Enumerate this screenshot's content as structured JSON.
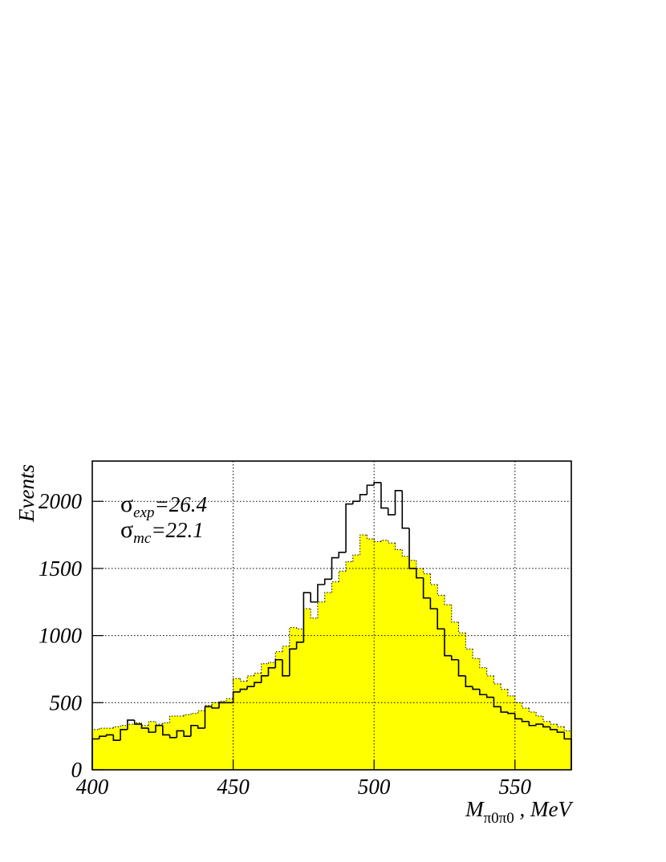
{
  "chart_data": {
    "type": "histogram",
    "bins": [
      400,
      402.5,
      405,
      407.5,
      410,
      412.5,
      415,
      417.5,
      420,
      422.5,
      425,
      427.5,
      430,
      432.5,
      435,
      437.5,
      440,
      442.5,
      445,
      447.5,
      450,
      452.5,
      455,
      457.5,
      460,
      462.5,
      465,
      467.5,
      470,
      472.5,
      475,
      477.5,
      480,
      482.5,
      485,
      487.5,
      490,
      492.5,
      495,
      497.5,
      500,
      502.5,
      505,
      507.5,
      510,
      512.5,
      515,
      517.5,
      520,
      522.5,
      525,
      527.5,
      530,
      532.5,
      535,
      537.5,
      540,
      542.5,
      545,
      547.5,
      550,
      552.5,
      555,
      557.5,
      560,
      562.5,
      565,
      567.5,
      570
    ],
    "series": [
      {
        "color": "#ffff00",
        "style": "filled",
        "values": [
          300,
          310,
          310,
          320,
          330,
          340,
          350,
          330,
          360,
          340,
          350,
          400,
          400,
          410,
          420,
          440,
          480,
          500,
          510,
          530,
          680,
          660,
          700,
          720,
          790,
          800,
          880,
          920,
          1060,
          1050,
          1200,
          1130,
          1250,
          1320,
          1400,
          1480,
          1550,
          1600,
          1750,
          1720,
          1700,
          1710,
          1690,
          1640,
          1590,
          1560,
          1500,
          1460,
          1380,
          1300,
          1230,
          1100,
          1020,
          900,
          830,
          760,
          700,
          640,
          600,
          550,
          500,
          460,
          430,
          400,
          360,
          340,
          320,
          290
        ]
      },
      {
        "color": "#000000",
        "style": "step",
        "values": [
          230,
          250,
          260,
          220,
          300,
          370,
          340,
          310,
          280,
          330,
          260,
          240,
          290,
          250,
          330,
          310,
          470,
          460,
          500,
          500,
          580,
          600,
          620,
          650,
          700,
          760,
          820,
          700,
          900,
          950,
          1320,
          1250,
          1380,
          1420,
          1580,
          1620,
          1980,
          2000,
          2050,
          2120,
          2140,
          1950,
          1900,
          2080,
          1800,
          1500,
          1430,
          1280,
          1200,
          1050,
          850,
          820,
          700,
          620,
          600,
          560,
          540,
          470,
          430,
          420,
          380,
          360,
          330,
          340,
          320,
          300,
          280,
          230
        ]
      }
    ],
    "xlim": [
      400,
      570
    ],
    "ylim": [
      0,
      2300
    ],
    "xticks": [
      400,
      450,
      500,
      550
    ],
    "yticks": [
      0,
      500,
      1000,
      1500,
      2000
    ],
    "grid": true,
    "y_label": "Events",
    "x_label": {
      "main": "M",
      "sub": "π0π0",
      "rest": " , MeV"
    },
    "annotations": [
      {
        "symbol": "σ",
        "sub": "exp",
        "text": "=26.4"
      },
      {
        "symbol": "σ",
        "sub": "mc",
        "text": "=22.1"
      }
    ]
  }
}
